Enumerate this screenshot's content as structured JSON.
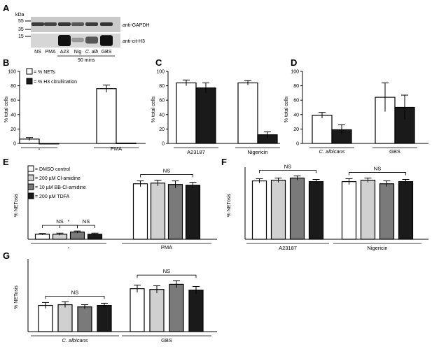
{
  "panels": {
    "A": "A",
    "B": "B",
    "C": "C",
    "D": "D",
    "E": "E",
    "F": "F",
    "G": "G"
  },
  "blot": {
    "kda_label": "kDa",
    "markers": [
      "55",
      "35",
      "15"
    ],
    "band_labels": [
      "anti-GAPDH",
      "anti-cit-H3"
    ],
    "lanes": [
      "NS",
      "PMA",
      "A23",
      "Nig",
      "C. alb",
      "GBS"
    ],
    "time_label": "90 mins",
    "gapdh_intensity": [
      0.85,
      0.8,
      0.9,
      0.7,
      0.85,
      0.9
    ],
    "h3_intensity": [
      0.0,
      0.0,
      1.0,
      0.05,
      0.4,
      0.95
    ]
  },
  "legend_B": [
    "= % NETs",
    "= % H3 citrullination"
  ],
  "legend_E": [
    "= DMSO control",
    "= 200 µM Cl-amidine",
    "= 10 µM BB-Cl-amidine",
    "= 200 µM  TDFA"
  ],
  "colors": {
    "white": "#ffffff",
    "light_gray": "#d0d0d0",
    "dark_gray": "#7a7a7a",
    "black": "#1a1a1a"
  },
  "chart_data": [
    {
      "id": "B",
      "type": "bar",
      "ylabel": "% total cells",
      "ylim": [
        0,
        100
      ],
      "yticks": [
        0,
        20,
        40,
        60,
        80,
        100
      ],
      "categories": [
        "-",
        "PMA"
      ],
      "series": [
        {
          "name": "% NETs",
          "color": "#ffffff",
          "values": [
            6,
            76
          ],
          "errors": [
            2,
            5
          ]
        },
        {
          "name": "% H3 citrullination",
          "color": "#1a1a1a",
          "values": [
            0,
            0.5
          ],
          "errors": [
            0,
            0
          ]
        }
      ],
      "annotations": []
    },
    {
      "id": "C",
      "type": "bar",
      "ylabel": "% total cells",
      "ylim": [
        0,
        100
      ],
      "yticks": [
        0,
        20,
        40,
        60,
        80,
        100
      ],
      "categories": [
        "A23187",
        "Nigericin"
      ],
      "series": [
        {
          "color": "#ffffff",
          "values": [
            84,
            84
          ],
          "errors": [
            4,
            3
          ]
        },
        {
          "color": "#1a1a1a",
          "values": [
            77,
            12
          ],
          "errors": [
            7,
            4
          ]
        }
      ],
      "annotations": []
    },
    {
      "id": "D",
      "type": "bar",
      "ylabel": "% total cells",
      "ylim": [
        0,
        100
      ],
      "yticks": [
        0,
        20,
        40,
        60,
        80,
        100
      ],
      "categories": [
        "C. albicans",
        "GBS"
      ],
      "series": [
        {
          "color": "#ffffff",
          "values": [
            39,
            64
          ],
          "errors": [
            4,
            20
          ]
        },
        {
          "color": "#1a1a1a",
          "values": [
            19,
            50
          ],
          "errors": [
            7,
            17
          ]
        }
      ],
      "annotations": []
    },
    {
      "id": "E",
      "type": "bar",
      "ylabel": "% NETosis",
      "ylim": [
        0,
        100
      ],
      "yticks": [],
      "categories": [
        "-",
        "PMA"
      ],
      "series": [
        {
          "name": "DMSO control",
          "color": "#ffffff",
          "values": [
            7,
            77
          ],
          "errors": [
            1,
            4
          ]
        },
        {
          "name": "200 µM Cl-amidine",
          "color": "#d0d0d0",
          "values": [
            7,
            78
          ],
          "errors": [
            1.5,
            4
          ]
        },
        {
          "name": "10 µM BB-Cl-amidine",
          "color": "#7a7a7a",
          "values": [
            10,
            76
          ],
          "errors": [
            1.5,
            5
          ]
        },
        {
          "name": "200 µM TDFA",
          "color": "#1a1a1a",
          "values": [
            7,
            75
          ],
          "errors": [
            1.5,
            4
          ]
        }
      ],
      "annotations": [
        {
          "text": "NS",
          "from": 0,
          "to": 0,
          "sub": [
            0,
            2
          ]
        },
        {
          "text": "*",
          "from": 0,
          "to": 0,
          "sub": [
            1,
            2
          ]
        },
        {
          "text": "NS",
          "from": 0,
          "to": 0,
          "sub": [
            2,
            3
          ]
        },
        {
          "text": "NS",
          "from": 1,
          "to": 1,
          "sub": [
            0,
            3
          ]
        }
      ]
    },
    {
      "id": "F",
      "type": "bar",
      "ylabel": "% NETosis",
      "ylim": [
        0,
        100
      ],
      "yticks": [],
      "categories": [
        "A23187",
        "Nigericin"
      ],
      "series": [
        {
          "color": "#ffffff",
          "values": [
            81,
            80
          ],
          "errors": [
            3,
            4
          ]
        },
        {
          "color": "#d0d0d0",
          "values": [
            82,
            82
          ],
          "errors": [
            3,
            3
          ]
        },
        {
          "color": "#7a7a7a",
          "values": [
            85,
            77
          ],
          "errors": [
            3,
            4
          ]
        },
        {
          "color": "#1a1a1a",
          "values": [
            80,
            80
          ],
          "errors": [
            3,
            3
          ]
        }
      ],
      "annotations": [
        {
          "text": "NS",
          "from": 0,
          "to": 0,
          "sub": [
            0,
            3
          ]
        },
        {
          "text": "NS",
          "from": 1,
          "to": 1,
          "sub": [
            0,
            3
          ]
        }
      ]
    },
    {
      "id": "G",
      "type": "bar",
      "ylabel": "% NETosis",
      "ylim": [
        0,
        100
      ],
      "yticks": [],
      "categories": [
        "C. albicans",
        "GBS"
      ],
      "series": [
        {
          "color": "#ffffff",
          "values": [
            36,
            59
          ],
          "errors": [
            4,
            5
          ]
        },
        {
          "color": "#d0d0d0",
          "values": [
            37,
            58
          ],
          "errors": [
            4,
            5
          ]
        },
        {
          "color": "#7a7a7a",
          "values": [
            34,
            65
          ],
          "errors": [
            3,
            5
          ]
        },
        {
          "color": "#1a1a1a",
          "values": [
            36,
            57
          ],
          "errors": [
            3,
            5
          ]
        }
      ],
      "annotations": [
        {
          "text": "NS",
          "from": 0,
          "to": 0,
          "sub": [
            0,
            3
          ]
        },
        {
          "text": "NS",
          "from": 1,
          "to": 1,
          "sub": [
            0,
            3
          ]
        }
      ]
    }
  ]
}
